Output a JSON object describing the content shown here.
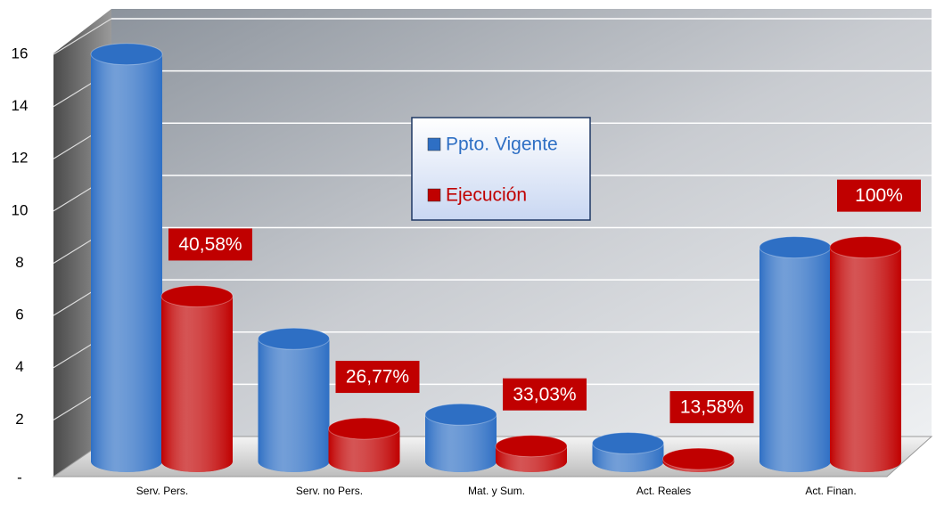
{
  "chart_data": {
    "type": "bar",
    "categories": [
      "Serv. Pers.",
      "Serv. no Pers.",
      "Mat. y Sum.",
      "Act. Reales",
      "Act. Finan."
    ],
    "series": [
      {
        "name": "Ppto. Vigente",
        "color": "#2e6fc4",
        "values": [
          15.6,
          4.7,
          1.8,
          0.7,
          8.2
        ]
      },
      {
        "name": "Ejecución",
        "color": "#c00000",
        "values": [
          6.33,
          1.26,
          0.59,
          0.1,
          8.2
        ]
      }
    ],
    "annotations": [
      "40,58%",
      "26,77%",
      "33,03%",
      "13,58%",
      "100%"
    ],
    "ylim": [
      0,
      16
    ],
    "yticks": [
      {
        "value": 0,
        "label": "-"
      },
      2,
      4,
      6,
      8,
      10,
      12,
      14,
      16
    ],
    "grid": true,
    "legend": "center"
  }
}
